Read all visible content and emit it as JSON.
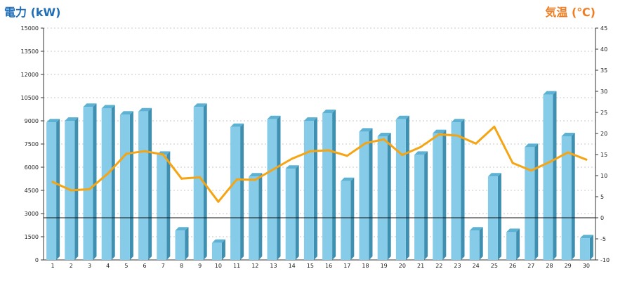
{
  "chart_data": {
    "type": "bar",
    "ylabel": "電力 (kW)",
    "y2label": "気温 (℃)",
    "categories": [
      "1",
      "2",
      "3",
      "4",
      "5",
      "6",
      "7",
      "8",
      "9",
      "10",
      "11",
      "12",
      "13",
      "14",
      "15",
      "16",
      "17",
      "18",
      "19",
      "20",
      "21",
      "22",
      "23",
      "24",
      "25",
      "26",
      "27",
      "28",
      "29",
      "30"
    ],
    "series": [
      {
        "axis": "left",
        "kind": "bar",
        "color": "#86cbe8",
        "values": [
          8900,
          9000,
          9900,
          9800,
          9400,
          9600,
          6800,
          1900,
          9900,
          1100,
          8600,
          5400,
          9100,
          5900,
          9000,
          9500,
          5100,
          8300,
          8000,
          9100,
          6800,
          8200,
          8900,
          1900,
          5400,
          1800,
          7300,
          10700,
          8000,
          1400
        ]
      },
      {
        "axis": "right",
        "kind": "line",
        "color": "#f5a414",
        "values": [
          8.5,
          6.5,
          6.8,
          10.5,
          15.2,
          15.8,
          15,
          9.3,
          9.6,
          3.8,
          9.1,
          9,
          11.5,
          14,
          15.8,
          16,
          14.7,
          17.7,
          18.6,
          14.9,
          16.8,
          19.8,
          19.5,
          17.6,
          21.6,
          13,
          11.2,
          13.2,
          15.5,
          13.8
        ]
      }
    ],
    "ylim": [
      0,
      15000
    ],
    "y_ticks": [
      "0",
      "1500",
      "3000",
      "4500",
      "6000",
      "7500",
      "9000",
      "10500",
      "12000",
      "13500",
      "15000"
    ],
    "y2lim": [
      -10,
      45
    ],
    "y2_ticks": [
      "-10",
      "-5",
      "0",
      "5",
      "10",
      "15",
      "20",
      "25",
      "30",
      "35",
      "40",
      "45"
    ],
    "grid": true,
    "zero_line_axis": "right"
  }
}
